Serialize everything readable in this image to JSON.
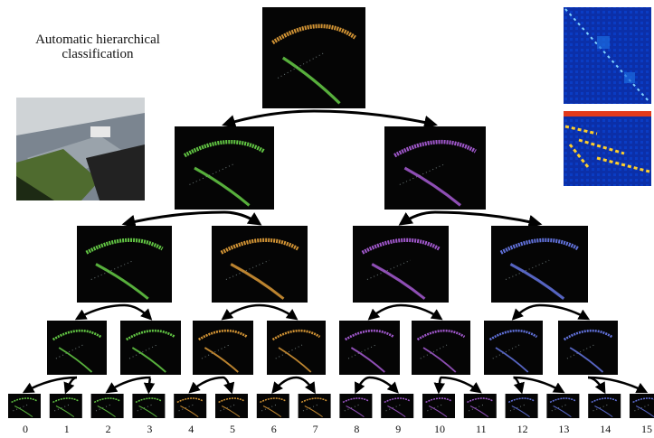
{
  "caption": {
    "lines": [
      "Automatic hierarchical",
      "classification"
    ]
  },
  "leaves": [
    "0",
    "1",
    "2",
    "3",
    "4",
    "5",
    "6",
    "7",
    "8",
    "9",
    "10",
    "11",
    "12",
    "13",
    "14",
    "15"
  ]
}
